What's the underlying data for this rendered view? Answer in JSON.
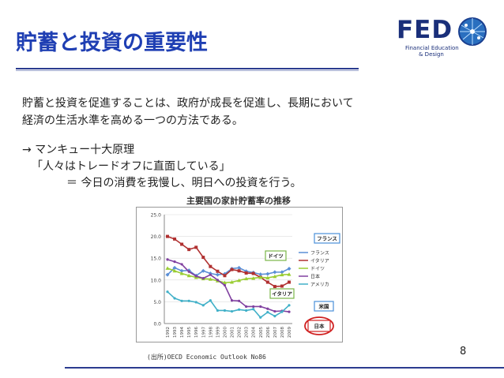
{
  "slide": {
    "title": "貯蓄と投資の重要性",
    "page_number": "8",
    "logo": {
      "name": "FED",
      "sub1": "Financial Education",
      "sub2": "& Design"
    },
    "body": [
      "貯蓄と投資を促進することは、政府が成長を促進し、長期において",
      "経済の生活水準を高める一つの方法である。",
      "→ マンキュー十大原理",
      "「人々はトレードオフに直面している」",
      "＝ 今日の消費を我慢し、明日への投資を行う。"
    ],
    "source": "(出所)OECD Economic Outlook No86"
  },
  "chart_data": {
    "type": "line",
    "title": "主要国の家計貯蓄率の推移",
    "x": [
      "1992",
      "1993",
      "1994",
      "1995",
      "1996",
      "1997",
      "1998",
      "1999",
      "2000",
      "2001",
      "2002",
      "2003",
      "2004",
      "2005",
      "2006",
      "2007",
      "2008",
      "2009"
    ],
    "ylim": [
      0,
      25
    ],
    "yticks": [
      "0.0",
      "5.0",
      "10.0",
      "15.0",
      "20.0",
      "25.0"
    ],
    "legend_position": "right",
    "series": [
      {
        "name": "フランス",
        "color": "#5b8fd6",
        "marker": "diamond",
        "values": [
          11.2,
          12.8,
          12.1,
          12.2,
          11.0,
          12.1,
          11.5,
          11.2,
          11.4,
          12.6,
          12.8,
          12.0,
          11.7,
          11.3,
          11.4,
          11.8,
          11.8,
          12.6
        ]
      },
      {
        "name": "イタリア",
        "color": "#b03030",
        "marker": "square",
        "values": [
          20.0,
          19.4,
          18.2,
          17.0,
          17.5,
          15.2,
          13.1,
          12.0,
          11.0,
          12.4,
          12.1,
          11.6,
          11.5,
          10.6,
          9.5,
          8.5,
          8.6,
          9.5
        ]
      },
      {
        "name": "ドイツ",
        "color": "#9acd32",
        "marker": "triangle",
        "values": [
          12.7,
          12.1,
          11.5,
          11.0,
          10.6,
          10.3,
          10.2,
          9.8,
          9.4,
          9.5,
          9.9,
          10.3,
          10.4,
          10.6,
          10.5,
          10.8,
          11.2,
          11.3
        ]
      },
      {
        "name": "日本",
        "color": "#8040a0",
        "marker": "x",
        "values": [
          14.7,
          14.2,
          13.6,
          11.9,
          10.9,
          10.4,
          11.2,
          10.0,
          8.8,
          5.3,
          5.2,
          3.9,
          3.9,
          3.9,
          3.4,
          2.8,
          2.9,
          2.7
        ]
      },
      {
        "name": "アメリカ",
        "color": "#40b0c8",
        "marker": "star",
        "values": [
          7.3,
          5.8,
          5.2,
          5.2,
          4.9,
          4.2,
          5.3,
          3.0,
          3.0,
          2.8,
          3.2,
          3.0,
          3.3,
          1.4,
          2.6,
          1.7,
          2.7,
          4.2
        ]
      }
    ],
    "annotations": [
      "フランス",
      "ドイツ",
      "イタリア",
      "米国",
      "日本"
    ]
  }
}
